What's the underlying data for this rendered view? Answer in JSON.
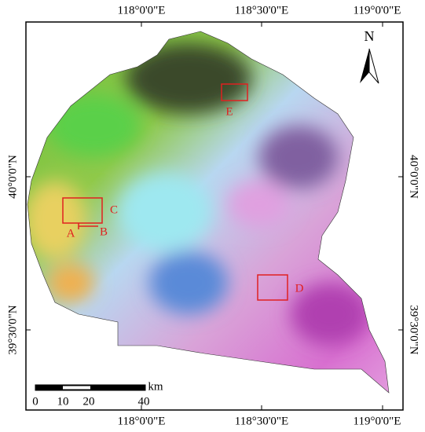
{
  "map": {
    "x_labels_top": [
      "118°0'0\"E",
      "118°30'0\"E",
      "119°0'0\"E"
    ],
    "x_labels_bottom": [
      "118°0'0\"E",
      "118°30'0\"E",
      "119°0'0\"E"
    ],
    "y_labels_left": [
      "40°0'0\"N",
      "39°30'0\"N"
    ],
    "y_labels_right": [
      "40°0'0\"N",
      "39°30'0\"N"
    ],
    "north": "N",
    "scale": {
      "labels": [
        "0",
        "10",
        "20",
        "40"
      ],
      "unit": "km"
    },
    "sites": [
      "A",
      "B",
      "C",
      "D",
      "E"
    ]
  }
}
